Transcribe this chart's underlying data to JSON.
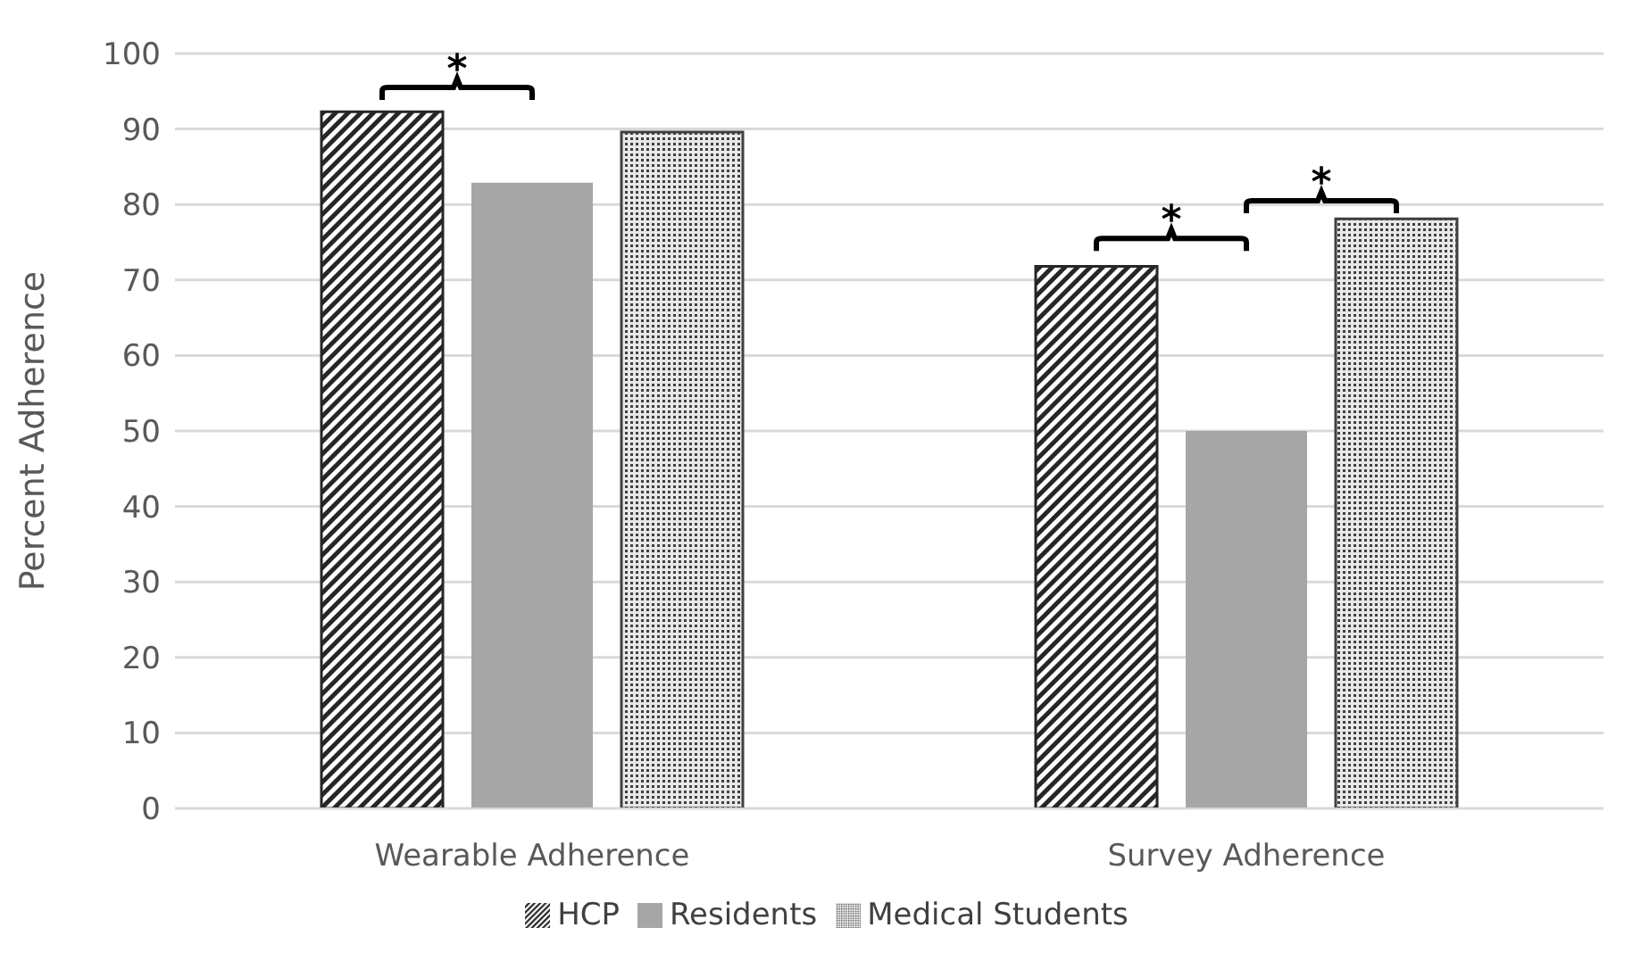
{
  "chart_data": {
    "type": "bar",
    "ylabel": "Percent Adherence",
    "categories": [
      "Wearable Adherence",
      "Survey Adherence"
    ],
    "series": [
      {
        "name": "HCP",
        "color": "#262626",
        "values": [
          92.3,
          71.8
        ]
      },
      {
        "name": "Residents",
        "color": "#a6a6a6",
        "values": [
          82.9,
          50
        ]
      },
      {
        "name": "Medical Students",
        "color": "#404040",
        "values": [
          89.6,
          78.1
        ]
      }
    ],
    "ylim": [
      0,
      100
    ],
    "yticks": [
      0,
      10,
      20,
      30,
      40,
      50,
      60,
      70,
      80,
      90,
      100
    ],
    "grid": "y",
    "legend": "bottom",
    "annotations": [
      "*",
      "*",
      "*"
    ]
  }
}
